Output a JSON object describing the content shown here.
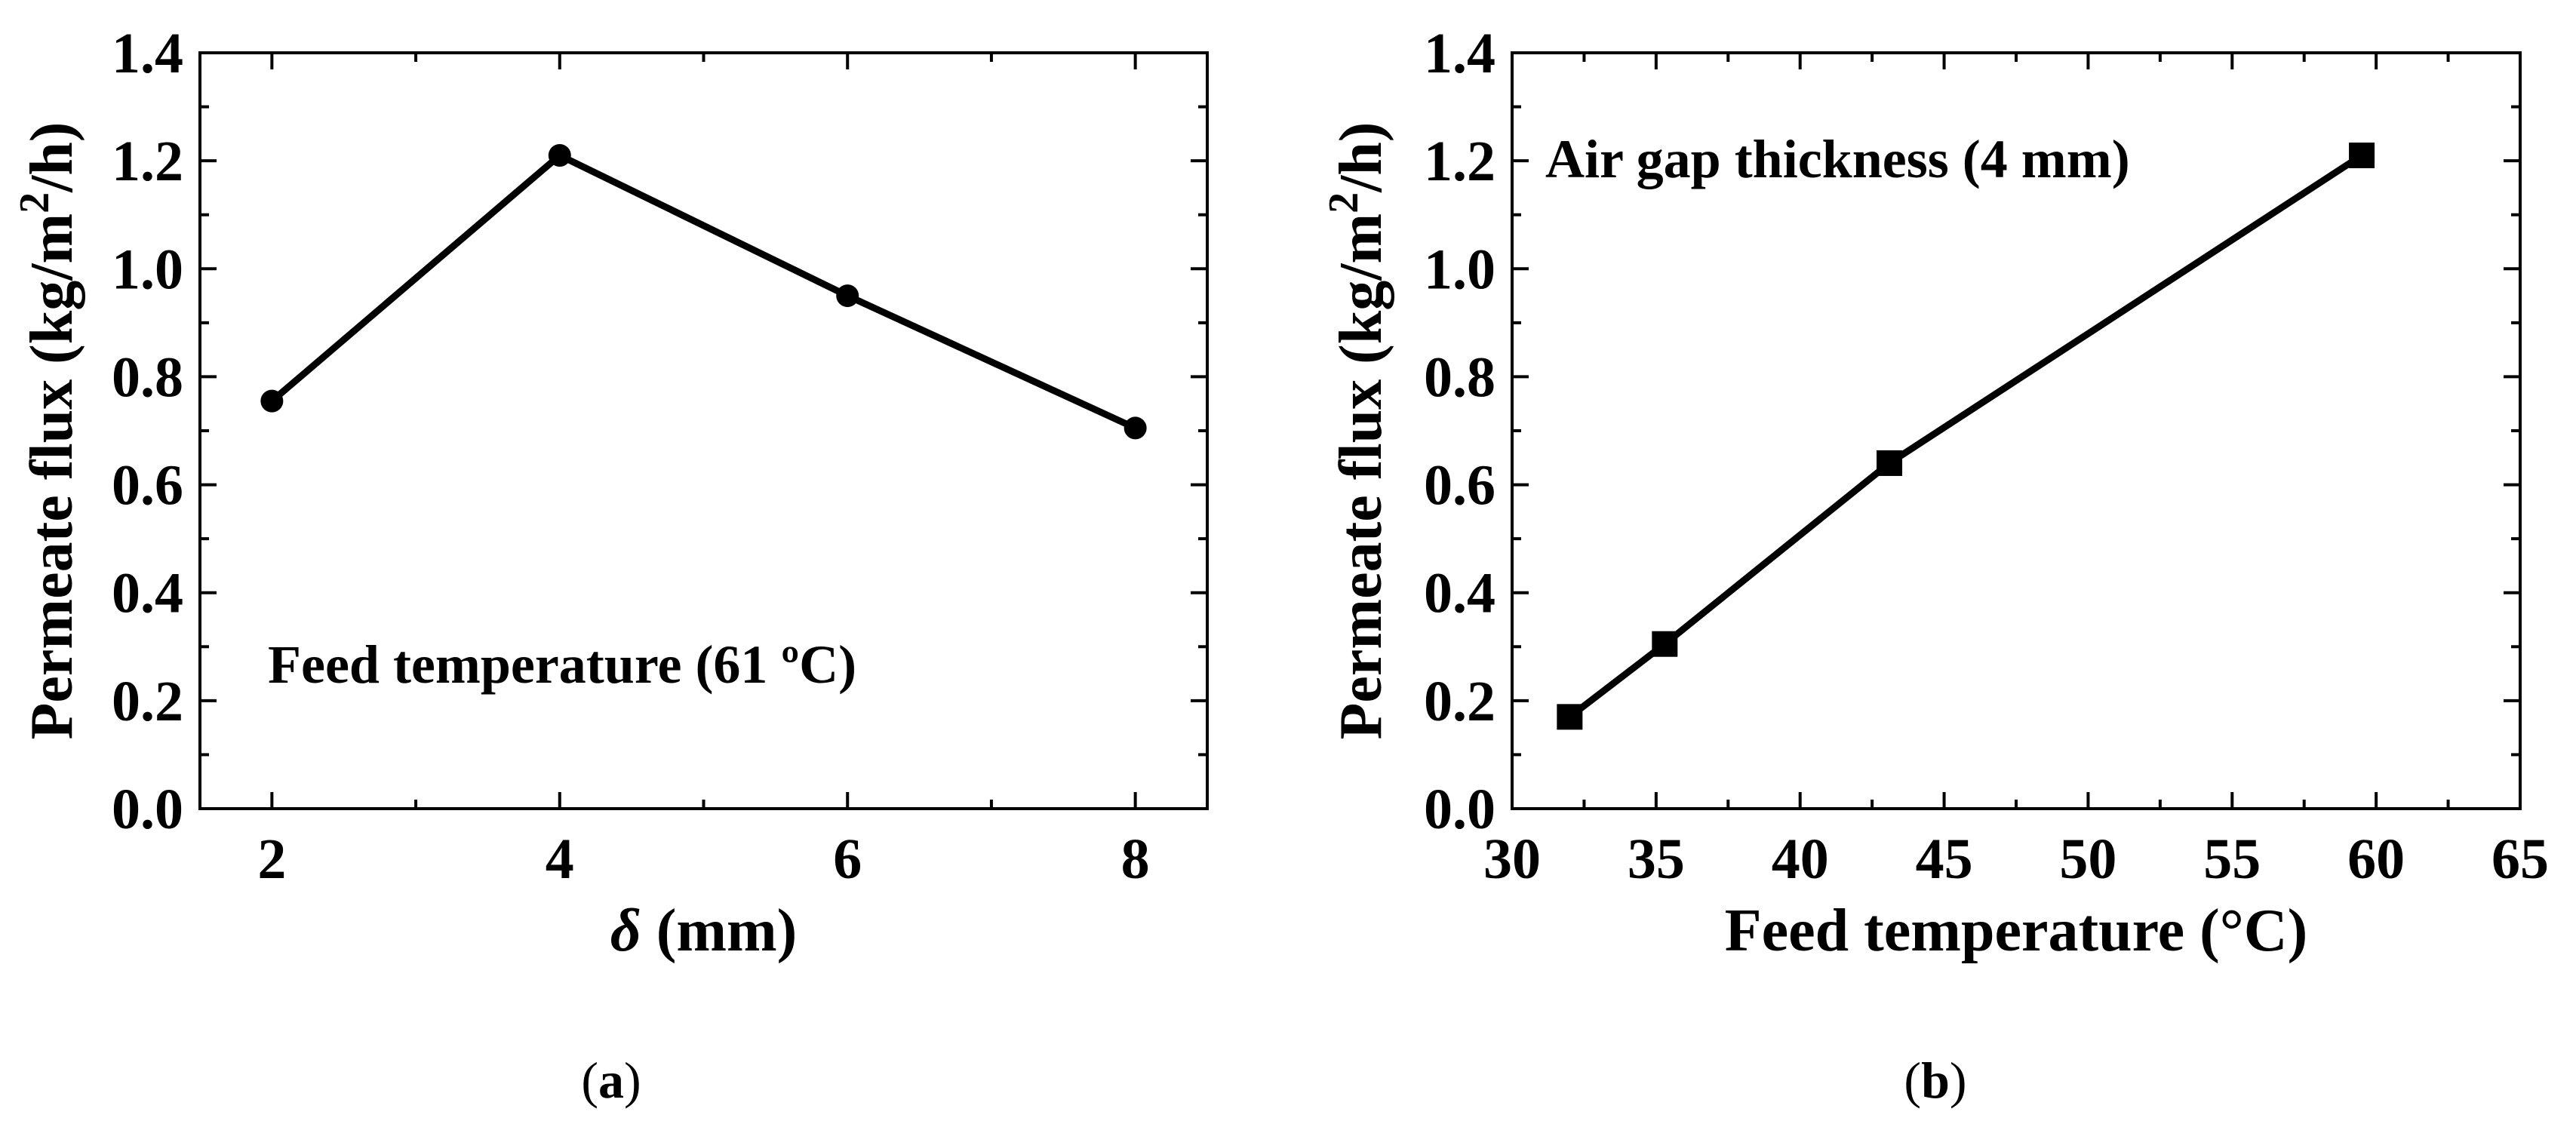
{
  "chart_data": [
    {
      "id": "a",
      "type": "line",
      "marker": "circle",
      "x": [
        2,
        4,
        6,
        8
      ],
      "y": [
        0.755,
        1.21,
        0.95,
        0.705
      ],
      "xlim": [
        1.5,
        8.5
      ],
      "ylim": [
        0.0,
        1.4
      ],
      "xticks": [
        "2",
        "4",
        "6",
        "8"
      ],
      "yticks": [
        "0.0",
        "0.2",
        "0.4",
        "0.6",
        "0.8",
        "1.0",
        "1.2",
        "1.4"
      ],
      "xlabel_symbol": "δ",
      "xlabel_rest": " (mm)",
      "ylabel_pre": "Permeate flux (kg/m",
      "ylabel_sup": "2",
      "ylabel_post": "/h)",
      "annotation": "Feed temperature (61 ºC)",
      "caption_open": "(",
      "caption_letter": "a",
      "caption_close": ")",
      "line_color": "#000000"
    },
    {
      "id": "b",
      "type": "line",
      "marker": "square",
      "x": [
        32,
        35.3,
        43.1,
        59.5
      ],
      "y": [
        0.17,
        0.305,
        0.64,
        1.21
      ],
      "xlim": [
        30,
        65
      ],
      "ylim": [
        0.0,
        1.4
      ],
      "xticks": [
        "30",
        "35",
        "40",
        "45",
        "50",
        "55",
        "60",
        "65"
      ],
      "yticks": [
        "0.0",
        "0.2",
        "0.4",
        "0.6",
        "0.8",
        "1.0",
        "1.2",
        "1.4"
      ],
      "xlabel": "Feed temperature (°C)",
      "ylabel_pre": "Permeate flux (kg/m",
      "ylabel_sup": "2",
      "ylabel_post": "/h)",
      "annotation": "Air gap thickness (4 mm)",
      "caption_open": "(",
      "caption_letter": "b",
      "caption_close": ")",
      "line_color": "#000000"
    }
  ]
}
